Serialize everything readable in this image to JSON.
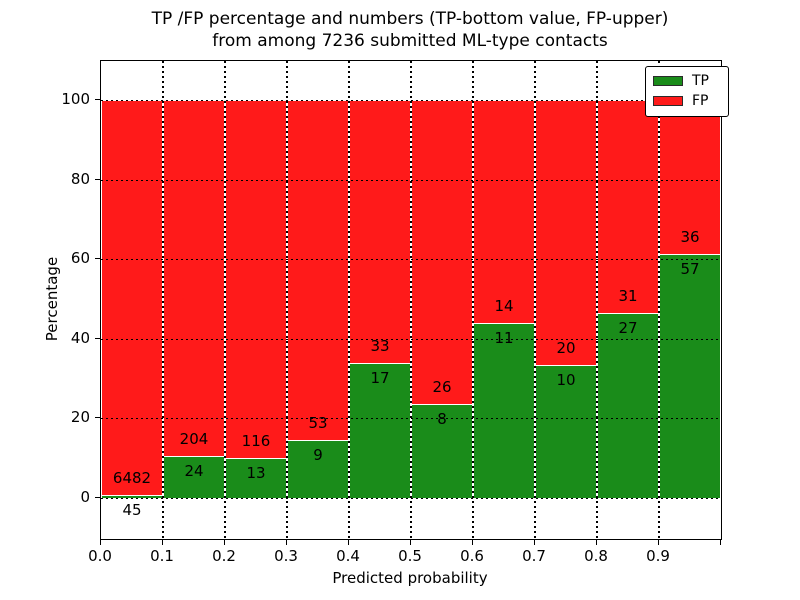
{
  "figure": {
    "title_line1": "TP /FP percentage and numbers (TP-bottom value, FP-upper)",
    "title_line2": "from among 7236 submitted ML-type contacts"
  },
  "chart_data": {
    "type": "bar",
    "subtype": "stacked-percentage",
    "title": "TP /FP percentage and numbers (TP-bottom value, FP-upper) from among 7236 submitted ML-type contacts",
    "xlabel": "Predicted probability",
    "ylabel": "Percentage",
    "total_contacts": 7236,
    "categories": [
      "0.0",
      "0.1",
      "0.2",
      "0.3",
      "0.4",
      "0.5",
      "0.6",
      "0.7",
      "0.8",
      "0.9"
    ],
    "bin_width": 0.1,
    "series": [
      {
        "name": "TP",
        "color": "#1a8c1a",
        "counts": [
          45,
          24,
          13,
          9,
          17,
          8,
          11,
          10,
          27,
          57
        ]
      },
      {
        "name": "FP",
        "color": "#ff1a1a",
        "counts": [
          6482,
          204,
          116,
          53,
          33,
          26,
          14,
          20,
          31,
          36
        ]
      }
    ],
    "tp_percent": [
      0.69,
      10.53,
      10.08,
      14.52,
      34.0,
      23.53,
      44.0,
      33.33,
      46.55,
      61.29
    ],
    "x_ticks": [
      "0.0",
      "0.1",
      "0.2",
      "0.3",
      "0.4",
      "0.5",
      "0.6",
      "0.7",
      "0.8",
      "0.9"
    ],
    "y_ticks": [
      0,
      20,
      40,
      60,
      80,
      100
    ],
    "xlim": [
      0.0,
      1.0
    ],
    "ylim": [
      -10.5,
      109.5
    ],
    "grid": true,
    "grid_style": "dotted-black",
    "bar_edge_color": "#ffffff",
    "legend": {
      "position": "upper-right",
      "entries": [
        {
          "label": "TP",
          "color": "#1a8c1a"
        },
        {
          "label": "FP",
          "color": "#ff1a1a"
        }
      ]
    }
  }
}
